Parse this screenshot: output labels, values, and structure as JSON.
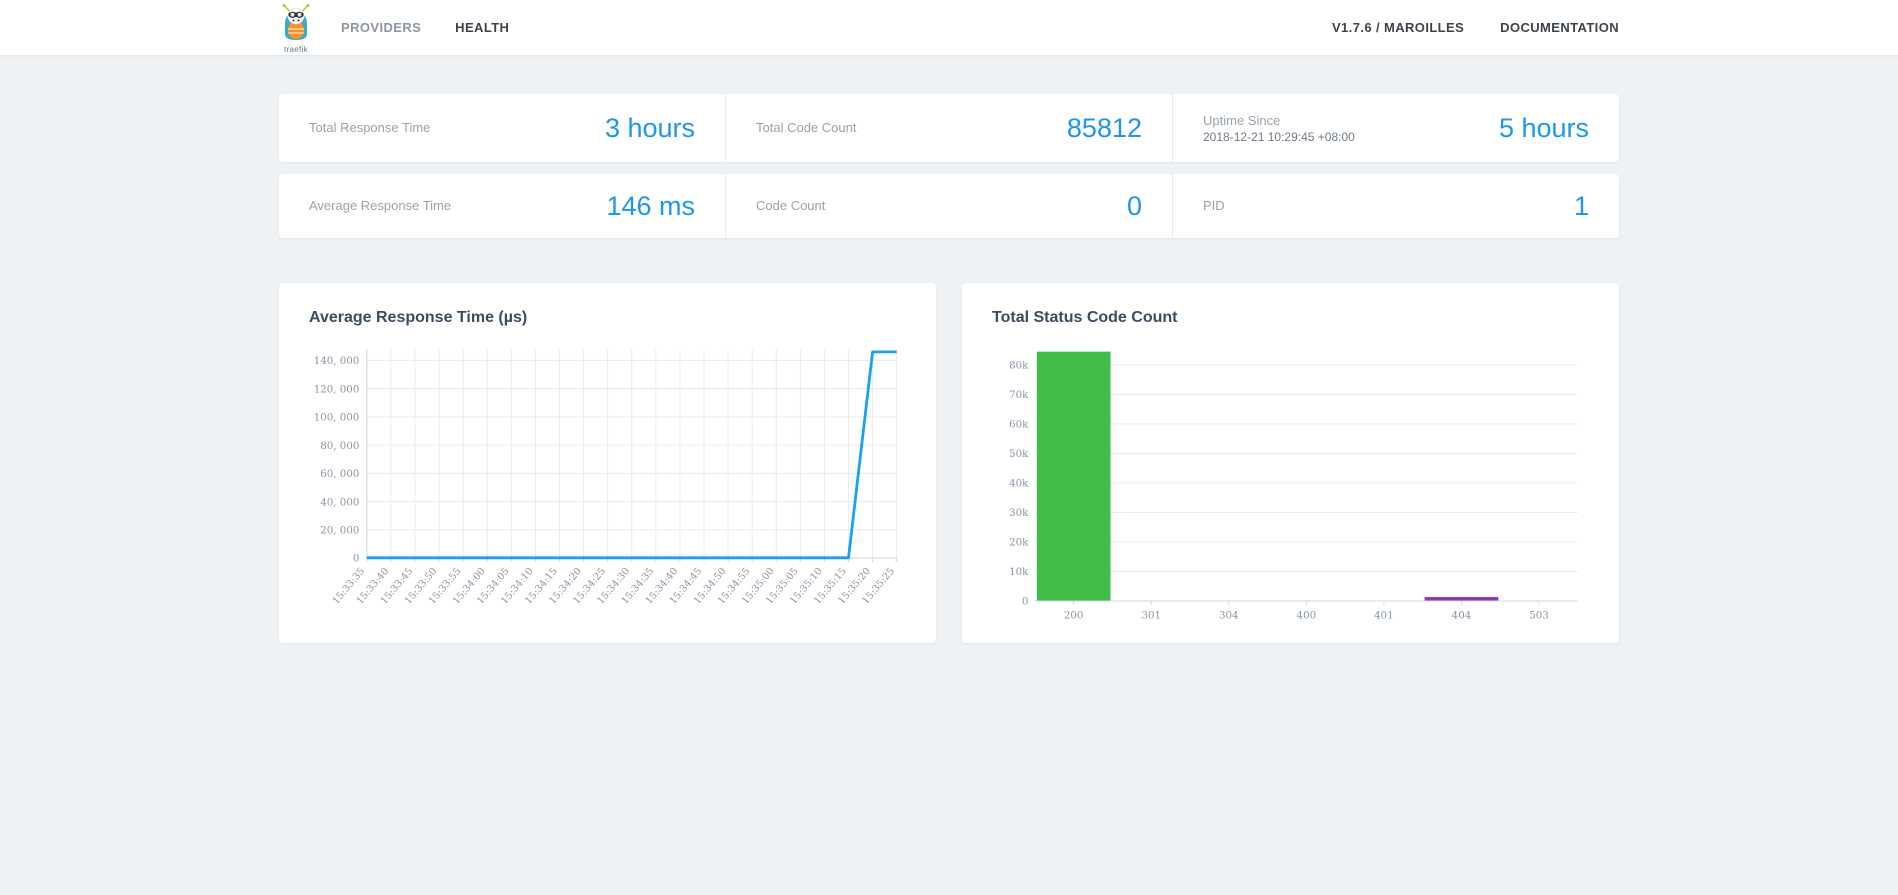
{
  "nav": {
    "logo_text": "traefik",
    "items": [
      {
        "label": "PROVIDERS",
        "active": false
      },
      {
        "label": "HEALTH",
        "active": true
      }
    ],
    "right_items": [
      {
        "label": "V1.7.6 / MAROILLES"
      },
      {
        "label": "DOCUMENTATION"
      }
    ]
  },
  "stats": {
    "rows": [
      [
        {
          "label": "Total Response Time",
          "value": "3 hours"
        },
        {
          "label": "Total Code Count",
          "value": "85812"
        },
        {
          "label": "Uptime Since",
          "sublabel": "2018-12-21 10:29:45 +08:00",
          "value": "5 hours"
        }
      ],
      [
        {
          "label": "Average Response Time",
          "value": "146 ms"
        },
        {
          "label": "Code Count",
          "value": "0"
        },
        {
          "label": "PID",
          "value": "1"
        }
      ]
    ]
  },
  "colors": {
    "accent_blue": "#1d97ec",
    "line_blue": "#18a0f2",
    "bar_green": "#41bd4a",
    "bar_purple": "#8a38b3",
    "grid": "#e6eaee",
    "axis": "#ccd5dc"
  },
  "chart_data": [
    {
      "type": "line",
      "title": "Average Response Time (µs)",
      "x": [
        "15:33:35",
        "15:33:40",
        "15:33:45",
        "15:33:50",
        "15:33:55",
        "15:34:00",
        "15:34:05",
        "15:34:10",
        "15:34:15",
        "15:34:20",
        "15:34:25",
        "15:34:30",
        "15:34:35",
        "15:34:40",
        "15:34:45",
        "15:34:50",
        "15:34:55",
        "15:35:00",
        "15:35:05",
        "15:35:10",
        "15:35:15",
        "15:35:20",
        "15:35:25"
      ],
      "values": [
        150,
        150,
        150,
        150,
        150,
        150,
        150,
        150,
        150,
        150,
        150,
        150,
        150,
        150,
        150,
        150,
        150,
        150,
        150,
        150,
        150,
        146000,
        146000
      ],
      "ylim": [
        0,
        148000
      ],
      "yticks": [
        0,
        20000,
        40000,
        60000,
        80000,
        100000,
        120000,
        140000
      ],
      "ytick_labels": [
        "0",
        "20, 000",
        "40, 000",
        "60, 000",
        "80, 000",
        "100, 000",
        "120, 000",
        "140, 000"
      ],
      "line_color": "#18a0f2",
      "grid": "both",
      "legend": "none"
    },
    {
      "type": "bar",
      "title": "Total Status Code Count",
      "categories": [
        "200",
        "301",
        "304",
        "400",
        "401",
        "404",
        "503"
      ],
      "values": [
        84500,
        0,
        0,
        0,
        0,
        1312,
        0
      ],
      "bar_colors": [
        "#41bd4a",
        "",
        "",
        "",
        "",
        "#8a38b3",
        ""
      ],
      "ylim": [
        0,
        86000
      ],
      "yticks": [
        0,
        10000,
        20000,
        30000,
        40000,
        50000,
        60000,
        70000,
        80000
      ],
      "ytick_labels": [
        "0",
        "10k",
        "20k",
        "30k",
        "40k",
        "50k",
        "60k",
        "70k",
        "80k"
      ],
      "grid": "horizontal",
      "legend": "none"
    }
  ]
}
